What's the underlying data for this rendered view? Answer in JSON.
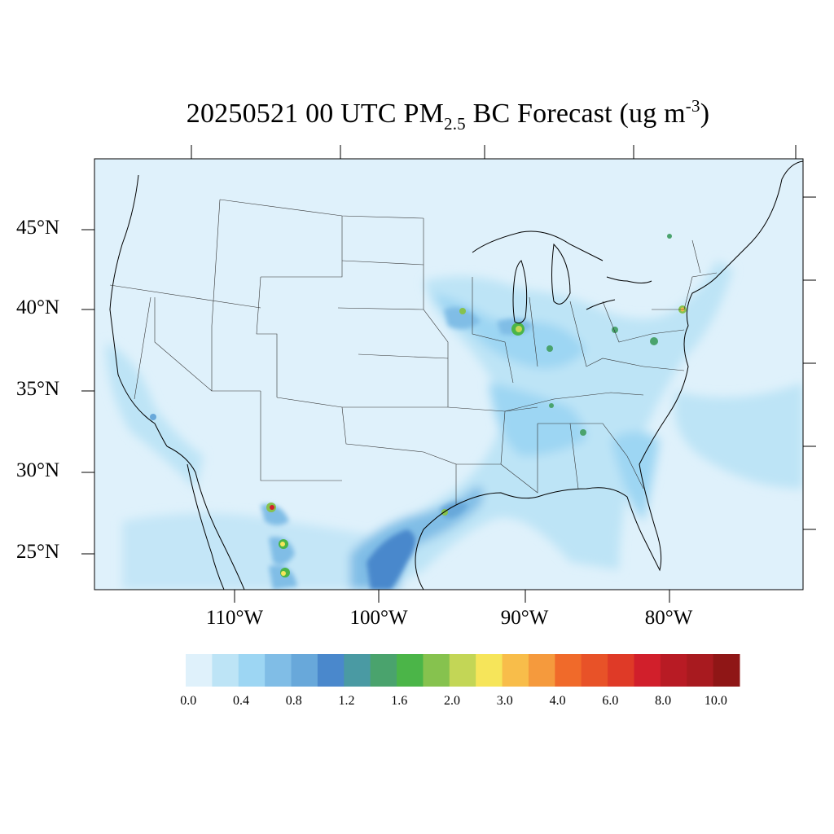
{
  "title": {
    "main": "20250521 00 UTC PM",
    "sub": "2.5",
    "rest": " BC Forecast (ug m",
    "sup": "-3",
    "close": ")"
  },
  "axes": {
    "lat_labels": [
      "45°N",
      "40°N",
      "35°N",
      "30°N",
      "25°N"
    ],
    "lon_labels": [
      "110°W",
      "100°W",
      "90°W",
      "80°W"
    ]
  },
  "colorbar": {
    "colors": [
      "#dff1fb",
      "#bde4f6",
      "#9dd6f3",
      "#80bde6",
      "#68a8da",
      "#4a88cc",
      "#4a9aa3",
      "#4aa36d",
      "#4bb548",
      "#86c24e",
      "#c3d656",
      "#f6e55a",
      "#f8bd4a",
      "#f59a3d",
      "#f06a2a",
      "#e85228",
      "#df3a27",
      "#d11f2b",
      "#b81b24",
      "#a81a1f",
      "#8f1616"
    ],
    "labels": [
      "0.0",
      "0.4",
      "0.8",
      "1.2",
      "1.6",
      "2.0",
      "3.0",
      "4.0",
      "6.0",
      "8.0",
      "10.0"
    ]
  },
  "map": {
    "background": "#dff1fb",
    "plumes": [
      {
        "name": "great-lakes-region",
        "level": 1
      },
      {
        "name": "ohio-valley",
        "level": 1
      },
      {
        "name": "southeast-us",
        "level": 1
      },
      {
        "name": "gulf-coast-texas",
        "level": 4
      },
      {
        "name": "mexico-east",
        "level": 4
      },
      {
        "name": "atlantic-plume",
        "level": 1
      },
      {
        "name": "california-coast",
        "level": 1
      },
      {
        "name": "chicago-hotspot",
        "level": 10
      },
      {
        "name": "new-york-hotspot",
        "level": 12
      },
      {
        "name": "mexico-fire-hotspot",
        "level": 16
      }
    ]
  }
}
